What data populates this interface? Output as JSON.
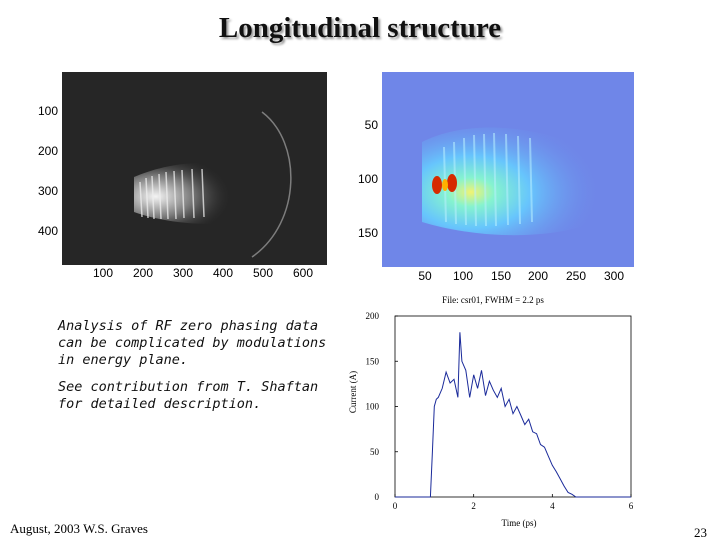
{
  "slide": {
    "title": "Longitudinal structure",
    "footer_author": "August, 2003 W.S. Graves",
    "page_number": "23"
  },
  "image_left": {
    "y_ticks": [
      "100",
      "200",
      "300",
      "400"
    ],
    "x_ticks": [
      "100",
      "200",
      "300",
      "400",
      "500",
      "600"
    ]
  },
  "image_right": {
    "y_ticks": [
      "50",
      "100",
      "150"
    ],
    "x_ticks": [
      "50",
      "100",
      "150",
      "200",
      "250",
      "300"
    ]
  },
  "text_block": {
    "paragraph_1": "Analysis of RF zero phasing data can be complicated by modulations in energy plane.",
    "paragraph_2": "See contribution from T. Shaftan for detailed description."
  },
  "chart_data": {
    "type": "line",
    "title": "File: csr01, FWHM = 2.2 ps",
    "xlabel": "Time (ps)",
    "ylabel": "Current (A)",
    "xlim": [
      0,
      6
    ],
    "ylim": [
      0,
      200
    ],
    "x_ticks": [
      "0",
      "2",
      "4",
      "6"
    ],
    "y_ticks": [
      "0",
      "50",
      "100",
      "150",
      "200"
    ],
    "line_color": "#1a2a9a",
    "x": [
      0,
      0.9,
      0.95,
      1.0,
      1.05,
      1.1,
      1.2,
      1.3,
      1.4,
      1.5,
      1.6,
      1.65,
      1.7,
      1.8,
      1.9,
      2.0,
      2.1,
      2.2,
      2.3,
      2.4,
      2.5,
      2.6,
      2.7,
      2.8,
      2.9,
      3.0,
      3.1,
      3.2,
      3.3,
      3.4,
      3.5,
      3.6,
      3.7,
      3.8,
      3.9,
      4.0,
      4.1,
      4.2,
      4.3,
      4.4,
      4.5,
      4.6,
      6.0
    ],
    "y": [
      0,
      0,
      50,
      100,
      108,
      110,
      120,
      138,
      126,
      130,
      110,
      182,
      150,
      140,
      110,
      135,
      120,
      140,
      112,
      128,
      118,
      110,
      120,
      100,
      108,
      92,
      100,
      90,
      80,
      86,
      72,
      70,
      58,
      55,
      45,
      35,
      28,
      20,
      12,
      5,
      3,
      0,
      0
    ]
  }
}
